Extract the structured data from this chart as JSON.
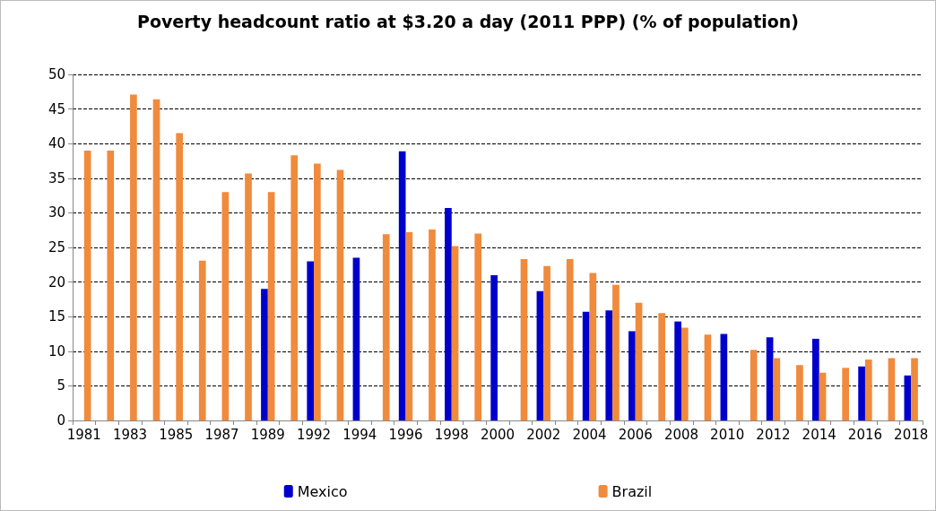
{
  "chart_data": {
    "type": "bar",
    "title": "Poverty headcount ratio at $3.20 a day (2011 PPP) (% of population)",
    "categories": [
      "1981",
      null,
      "1983",
      null,
      "1985",
      null,
      "1987",
      null,
      "1989",
      null,
      "1992",
      null,
      "1994",
      null,
      "1996",
      null,
      "1998",
      null,
      "2000",
      null,
      "2002",
      null,
      "2004",
      null,
      "2006",
      null,
      "2008",
      null,
      "2010",
      null,
      "2012",
      null,
      "2014",
      null,
      "2016",
      null,
      "2018"
    ],
    "series": [
      {
        "name": "Mexico",
        "color": "#0000cc",
        "values": [
          null,
          null,
          null,
          null,
          null,
          null,
          null,
          null,
          19,
          null,
          23,
          null,
          23.5,
          null,
          38.9,
          null,
          30.7,
          null,
          21,
          null,
          18.7,
          null,
          15.7,
          15.9,
          12.9,
          null,
          14.3,
          null,
          12.5,
          null,
          12,
          null,
          11.8,
          null,
          7.8,
          null,
          6.5
        ]
      },
      {
        "name": "Brazil",
        "color": "#f08a3c",
        "values": [
          39,
          39,
          47.1,
          46.4,
          41.5,
          23.1,
          33,
          35.7,
          33,
          38.3,
          37.1,
          36.2,
          null,
          26.9,
          27.2,
          27.6,
          25.2,
          27,
          null,
          23.3,
          22.3,
          23.3,
          21.3,
          19.6,
          17,
          15.5,
          13.4,
          12.4,
          null,
          10.2,
          9,
          8,
          6.9,
          7.6,
          8.8,
          9,
          9
        ]
      }
    ],
    "ylim": [
      0,
      50
    ],
    "yticks": [
      0,
      5,
      10,
      15,
      20,
      25,
      30,
      35,
      40,
      45,
      50
    ],
    "grid": "y",
    "legend": "bottom"
  }
}
